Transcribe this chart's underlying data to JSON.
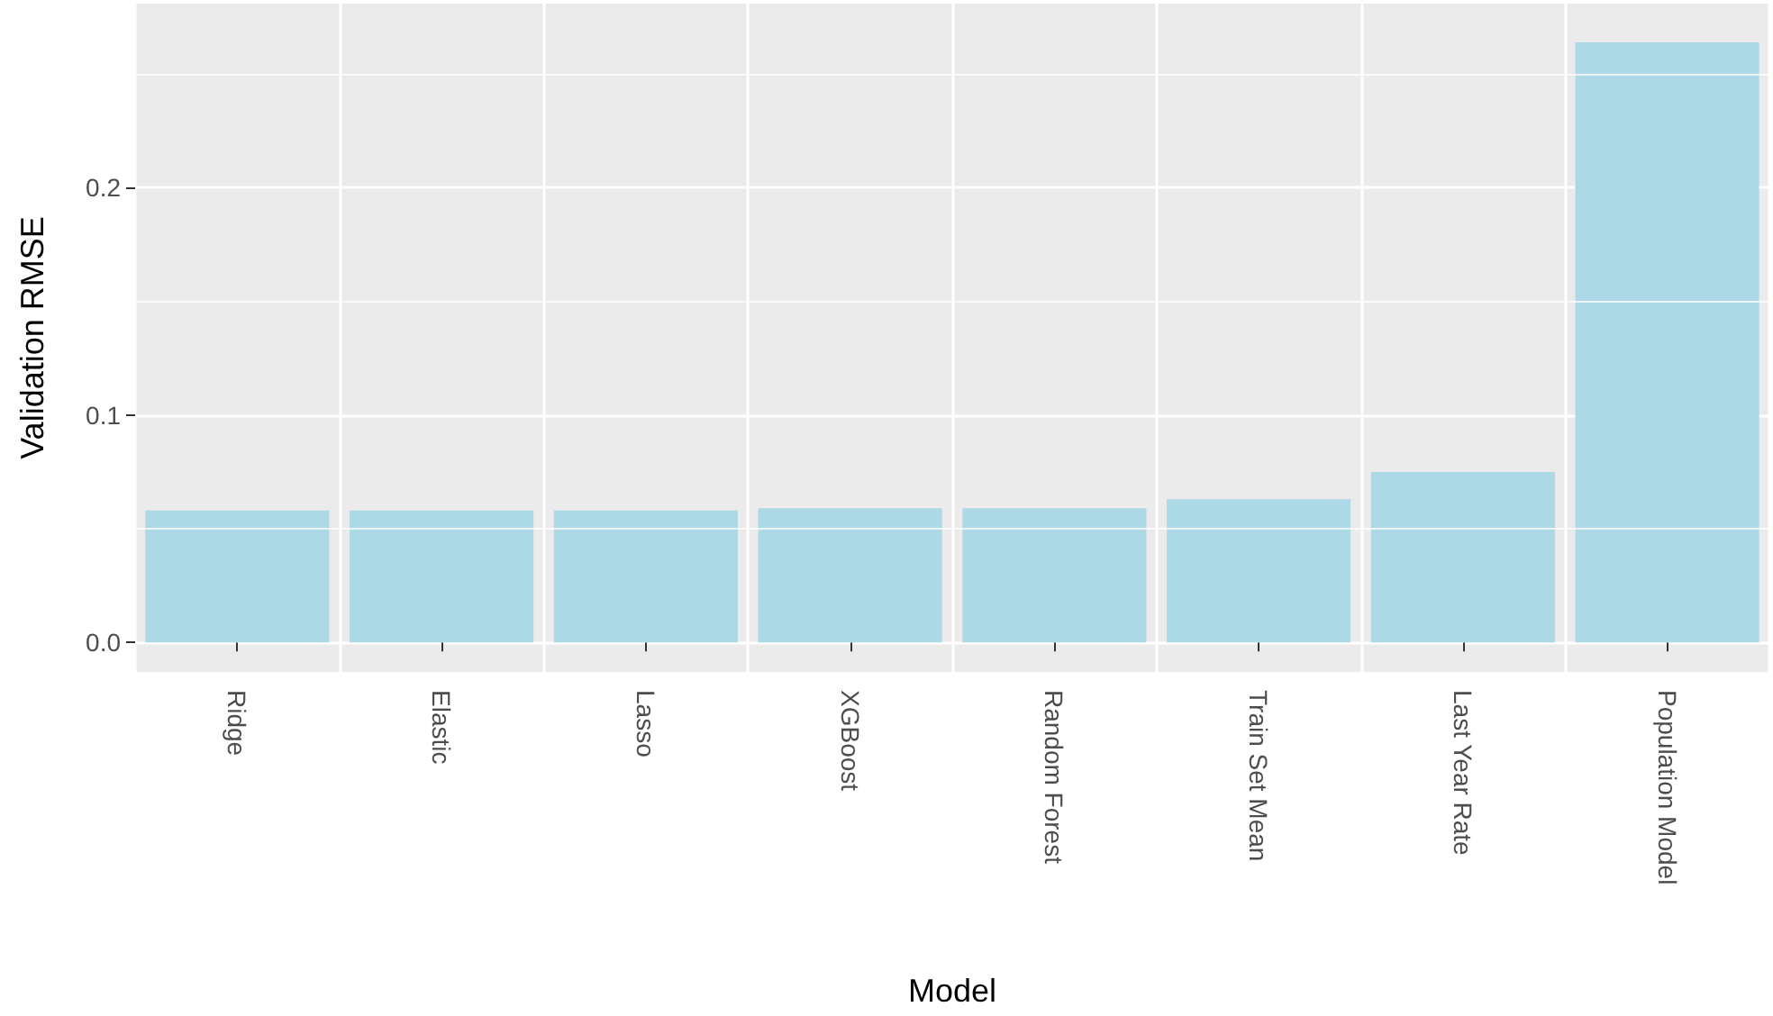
{
  "chart_data": {
    "type": "bar",
    "xlabel": "Model",
    "ylabel": "Validation RMSE",
    "categories": [
      "Ridge",
      "Elastic",
      "Lasso",
      "XGBoost",
      "Random Forest",
      "Train Set Mean",
      "Last Year Rate",
      "Population Model"
    ],
    "values": [
      0.058,
      0.058,
      0.058,
      0.059,
      0.059,
      0.063,
      0.075,
      0.264
    ],
    "color": "#add8e6",
    "ylim": [
      -0.013,
      0.281
    ],
    "yticks": [
      {
        "value": 0,
        "label": "0.0"
      },
      0.1,
      0.2
    ],
    "grid": true
  }
}
